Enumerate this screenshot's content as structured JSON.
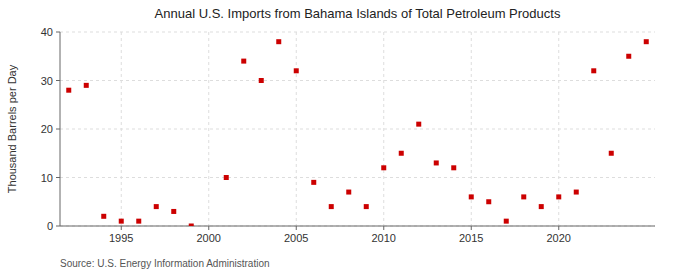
{
  "chart_data": {
    "type": "scatter",
    "title": "Annual U.S. Imports from Bahama Islands of Total Petroleum Products",
    "ylabel": "Thousand Barrels per Day",
    "source": "Source: U.S. Energy Information Administration",
    "x": [
      1992,
      1993,
      1994,
      1995,
      1996,
      1997,
      1998,
      1999,
      2001,
      2002,
      2003,
      2004,
      2005,
      2006,
      2007,
      2008,
      2009,
      2010,
      2011,
      2012,
      2013,
      2014,
      2015,
      2016,
      2017,
      2018,
      2019,
      2020,
      2021,
      2022,
      2023,
      2024,
      2025
    ],
    "values": [
      28,
      29,
      2,
      1,
      1,
      4,
      3,
      0,
      10,
      34,
      30,
      38,
      32,
      9,
      4,
      7,
      4,
      12,
      15,
      21,
      13,
      12,
      6,
      5,
      1,
      6,
      4,
      6,
      7,
      32,
      15,
      35,
      38
    ],
    "color": "#cc0000",
    "marker": "square",
    "xlim": [
      1991.5,
      2025.5
    ],
    "ylim": [
      0,
      40
    ],
    "xticks": [
      1995,
      2000,
      2005,
      2010,
      2015,
      2020
    ],
    "yticks": [
      0,
      10,
      20,
      30,
      40
    ],
    "grid": true
  }
}
